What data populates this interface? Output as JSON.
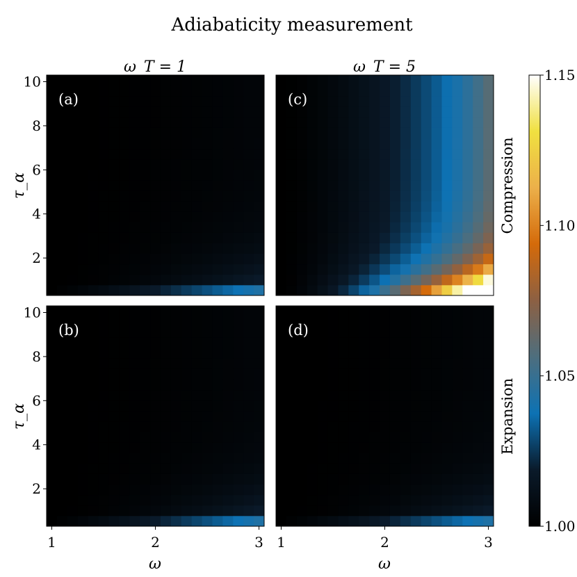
{
  "chart_data": {
    "type": "heatmap",
    "title": "Adiabaticity measurement",
    "column_titles": [
      "ω_T = 1",
      "ω_T = 5"
    ],
    "row_labels": [
      "Compression",
      "Expansion"
    ],
    "xlabel": "ω",
    "ylabel": "τ_α",
    "x_range": [
      0.95,
      3.05
    ],
    "y_range": [
      0.3,
      10.3
    ],
    "x_ticks": [
      "1",
      "2",
      "3"
    ],
    "y_ticks": [
      "2",
      "4",
      "6",
      "8",
      "10"
    ],
    "colorbar": {
      "range": [
        1.0,
        1.15
      ],
      "ticks": [
        "1.00",
        "1.05",
        "1.10",
        "1.15"
      ],
      "colors": [
        "#000000",
        "#0a1a2a",
        "#0d72b4",
        "#4d6e7e",
        "#8c6043",
        "#d46a0a",
        "#ecb04a",
        "#f0e040",
        "#ffffff"
      ]
    },
    "grid_columns": 21,
    "grid_rows": 21,
    "panels": [
      {
        "label": "(a)",
        "omega_T": 1,
        "process": "compression",
        "col_peak": 1.045,
        "row_edge": 0.44,
        "row_peak": 1.025
      },
      {
        "label": "(b)",
        "omega_T": 1,
        "process": "expansion",
        "col_peak": 1.045,
        "row_edge": 0.44,
        "row_peak": 1.025
      },
      {
        "label": "(c)",
        "omega_T": 5,
        "process": "compression",
        "col_peak": 1.15,
        "row_edge": 0.1,
        "row_peak": 1.065
      },
      {
        "label": "(d)",
        "omega_T": 5,
        "process": "expansion",
        "col_peak": 1.045,
        "row_edge": 0.44,
        "row_peak": 1.025
      }
    ]
  }
}
